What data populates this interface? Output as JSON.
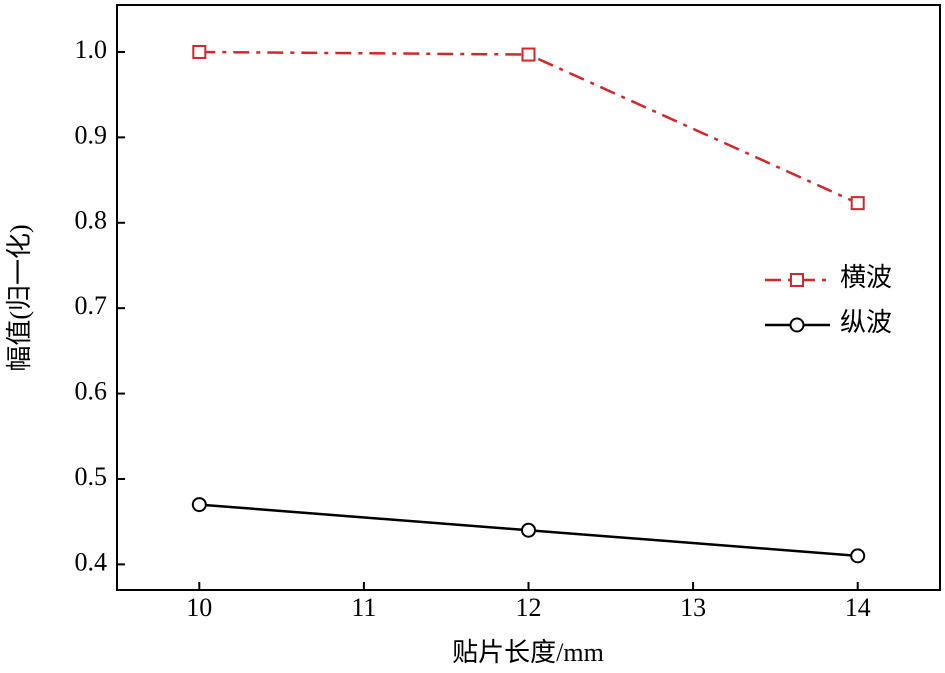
{
  "chart_data": {
    "type": "line",
    "x_label": "贴片长度/mm",
    "y_label": "幅值(归一化)",
    "x": [
      10,
      12,
      14
    ],
    "series": [
      {
        "name": "横波",
        "color": "#d62728",
        "marker": "square",
        "dash": "dashdot",
        "values": [
          1.0,
          0.997,
          0.823
        ]
      },
      {
        "name": "纵波",
        "color": "#000000",
        "marker": "circle",
        "dash": "solid",
        "values": [
          0.47,
          0.44,
          0.41
        ]
      }
    ],
    "xlim": [
      9.5,
      14.5
    ],
    "xticks": [
      10,
      11,
      12,
      13,
      14
    ],
    "ylim": [
      0.37,
      1.055
    ],
    "yticks": [
      0.4,
      0.5,
      0.6,
      0.7,
      0.8,
      0.9,
      {
        "value": 1,
        "label": "1.0"
      }
    ],
    "grid": false,
    "legend": "right"
  }
}
